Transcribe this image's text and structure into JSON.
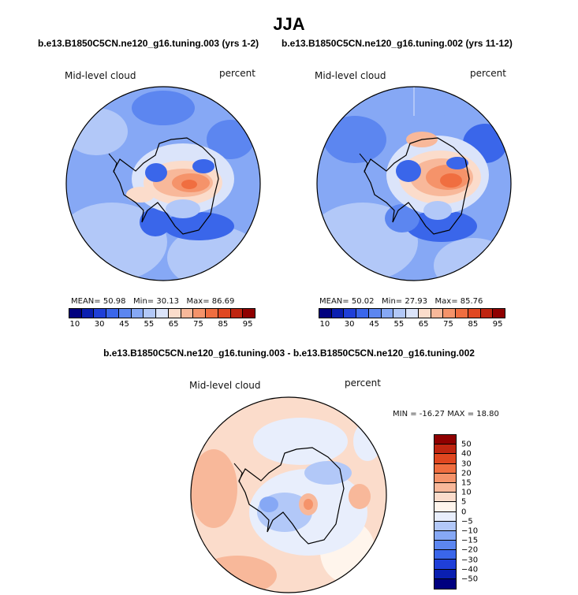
{
  "title": "JJA",
  "panels": [
    {
      "subtitle": "b.e13.B1850C5CN.ne120_g16.tuning.003 (yrs 1-2)",
      "variable": "Mid-level cloud",
      "units": "percent",
      "mean_label": "MEAN=",
      "mean": "50.98",
      "min_label": "Min=",
      "min": "30.13",
      "max_label": "Max=",
      "max": "86.69"
    },
    {
      "subtitle": "b.e13.B1850C5CN.ne120_g16.tuning.002 (yrs 11-12)",
      "variable": "Mid-level cloud",
      "units": "percent",
      "mean_label": "MEAN=",
      "mean": "50.02",
      "min_label": "Min=",
      "min": "27.93",
      "max_label": "Max=",
      "max": "85.76"
    }
  ],
  "diff_panel": {
    "subtitle": "b.e13.B1850C5CN.ne120_g16.tuning.003 - b.e13.B1850C5CN.ne120_g16.tuning.002",
    "variable": "Mid-level cloud",
    "units": "percent",
    "minmax_text": "MIN = -16.27  MAX =  18.80"
  },
  "chart_data": [
    {
      "type": "heatmap",
      "projection": "south-polar-stereographic",
      "title": "b.e13.B1850C5CN.ne120_g16.tuning.003 (yrs 1-2)",
      "field": "Mid-level cloud",
      "units": "percent",
      "mean": 50.98,
      "min": 30.13,
      "max": 86.69,
      "colorbar_levels": [
        10,
        20,
        30,
        40,
        45,
        50,
        55,
        60,
        65,
        70,
        75,
        80,
        85,
        90,
        95
      ],
      "colorbar_tick_labels": [
        "10",
        "30",
        "45",
        "55",
        "65",
        "75",
        "85",
        "95"
      ]
    },
    {
      "type": "heatmap",
      "projection": "south-polar-stereographic",
      "title": "b.e13.B1850C5CN.ne120_g16.tuning.002 (yrs 11-12)",
      "field": "Mid-level cloud",
      "units": "percent",
      "mean": 50.02,
      "min": 27.93,
      "max": 85.76,
      "colorbar_levels": [
        10,
        20,
        30,
        40,
        45,
        50,
        55,
        60,
        65,
        70,
        75,
        80,
        85,
        90,
        95
      ],
      "colorbar_tick_labels": [
        "10",
        "30",
        "45",
        "55",
        "65",
        "75",
        "85",
        "95"
      ]
    },
    {
      "type": "heatmap",
      "projection": "south-polar-stereographic",
      "title": "b.e13.B1850C5CN.ne120_g16.tuning.003 - b.e13.B1850C5CN.ne120_g16.tuning.002",
      "field": "Mid-level cloud",
      "units": "percent",
      "min": -16.27,
      "max": 18.8,
      "colorbar_levels": [
        50,
        40,
        30,
        20,
        15,
        10,
        5,
        0,
        -5,
        -10,
        -15,
        -20,
        -30,
        -40,
        -50
      ],
      "colorbar_tick_labels": [
        "50",
        "40",
        "30",
        "20",
        "15",
        "10",
        "5",
        "0",
        "−5",
        "−10",
        "−15",
        "−20",
        "−30",
        "−40",
        "−50"
      ]
    }
  ],
  "colors": {
    "abs_scale": [
      "#00007f",
      "#0a1fb0",
      "#1f3fd8",
      "#3a66ea",
      "#5c86f0",
      "#86a8f5",
      "#b2c8f8",
      "#dbe4fa",
      "#fbdccb",
      "#f8b89a",
      "#f5936a",
      "#f06e40",
      "#e04720",
      "#bf2510",
      "#8f0000"
    ],
    "diff_scale": [
      "#8f0000",
      "#bf2510",
      "#e04720",
      "#f06e40",
      "#f5936a",
      "#f8b89a",
      "#fbdccb",
      "#fff5ec",
      "#e8eefc",
      "#b2c8f8",
      "#86a8f5",
      "#5c86f0",
      "#3a66ea",
      "#1f3fd8",
      "#0a1fb0",
      "#00007f"
    ]
  }
}
